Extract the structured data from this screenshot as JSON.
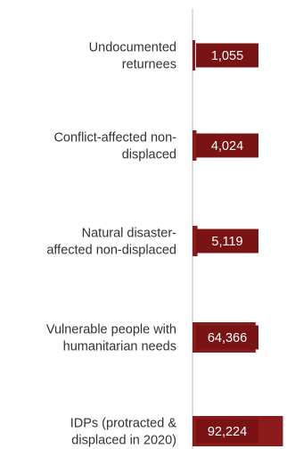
{
  "chart_data": {
    "type": "bar",
    "orientation": "horizontal",
    "categories": [
      [
        "Undocumented",
        "returnees"
      ],
      [
        "Conflict-affected non-",
        "displaced"
      ],
      [
        "Natural disaster-",
        "affected non-displaced"
      ],
      [
        "Vulnerable people with",
        "humanitarian needs"
      ],
      [
        "IDPs (protracted &",
        "displaced in 2020)"
      ]
    ],
    "values": [
      1055,
      4024,
      5119,
      64366,
      92224
    ],
    "value_labels": [
      "1,055",
      "4,024",
      "5,119",
      "64,366",
      "92,224"
    ],
    "xlim": [
      0,
      100000
    ],
    "bar_color": "#8b1a1a",
    "label_box_color": "#7a1414",
    "axis_color": "#d0d0d0",
    "grid": false,
    "legend": "none"
  }
}
